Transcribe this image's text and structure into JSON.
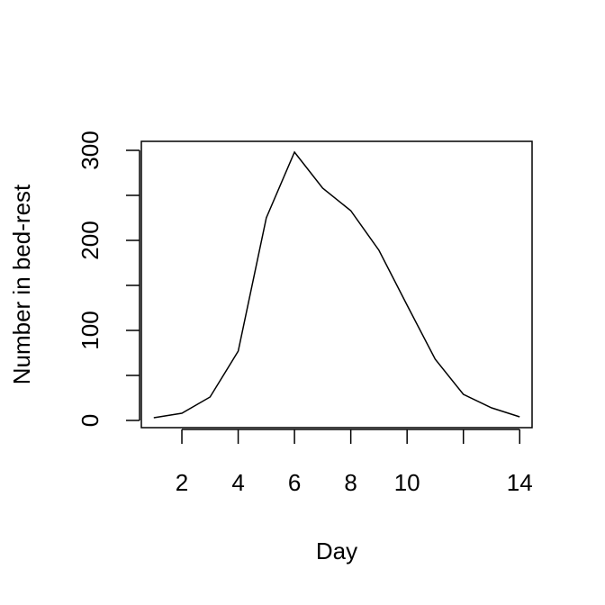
{
  "chart_data": {
    "type": "line",
    "title": "",
    "xlabel": "Day",
    "ylabel": "Number in bed-rest",
    "x": [
      1,
      2,
      3,
      4,
      5,
      6,
      7,
      8,
      9,
      10,
      11,
      12,
      13,
      14
    ],
    "series": [
      {
        "values": [
          3,
          8,
          26,
          77,
          225,
          298,
          258,
          233,
          189,
          128,
          68,
          29,
          14,
          4
        ]
      }
    ],
    "xlim": [
      0.56,
      14.44
    ],
    "ylim": [
      -8,
      310
    ],
    "xticks": [
      2,
      4,
      6,
      8,
      10,
      12,
      14
    ],
    "xtick_labels": [
      "2",
      "4",
      "6",
      "8",
      "10",
      "",
      "14"
    ],
    "yticks": [
      0,
      50,
      100,
      150,
      200,
      250,
      300
    ],
    "ytick_labels": [
      "0",
      "",
      "100",
      "",
      "200",
      "",
      "300"
    ],
    "grid": false,
    "line_color": "#000000"
  }
}
